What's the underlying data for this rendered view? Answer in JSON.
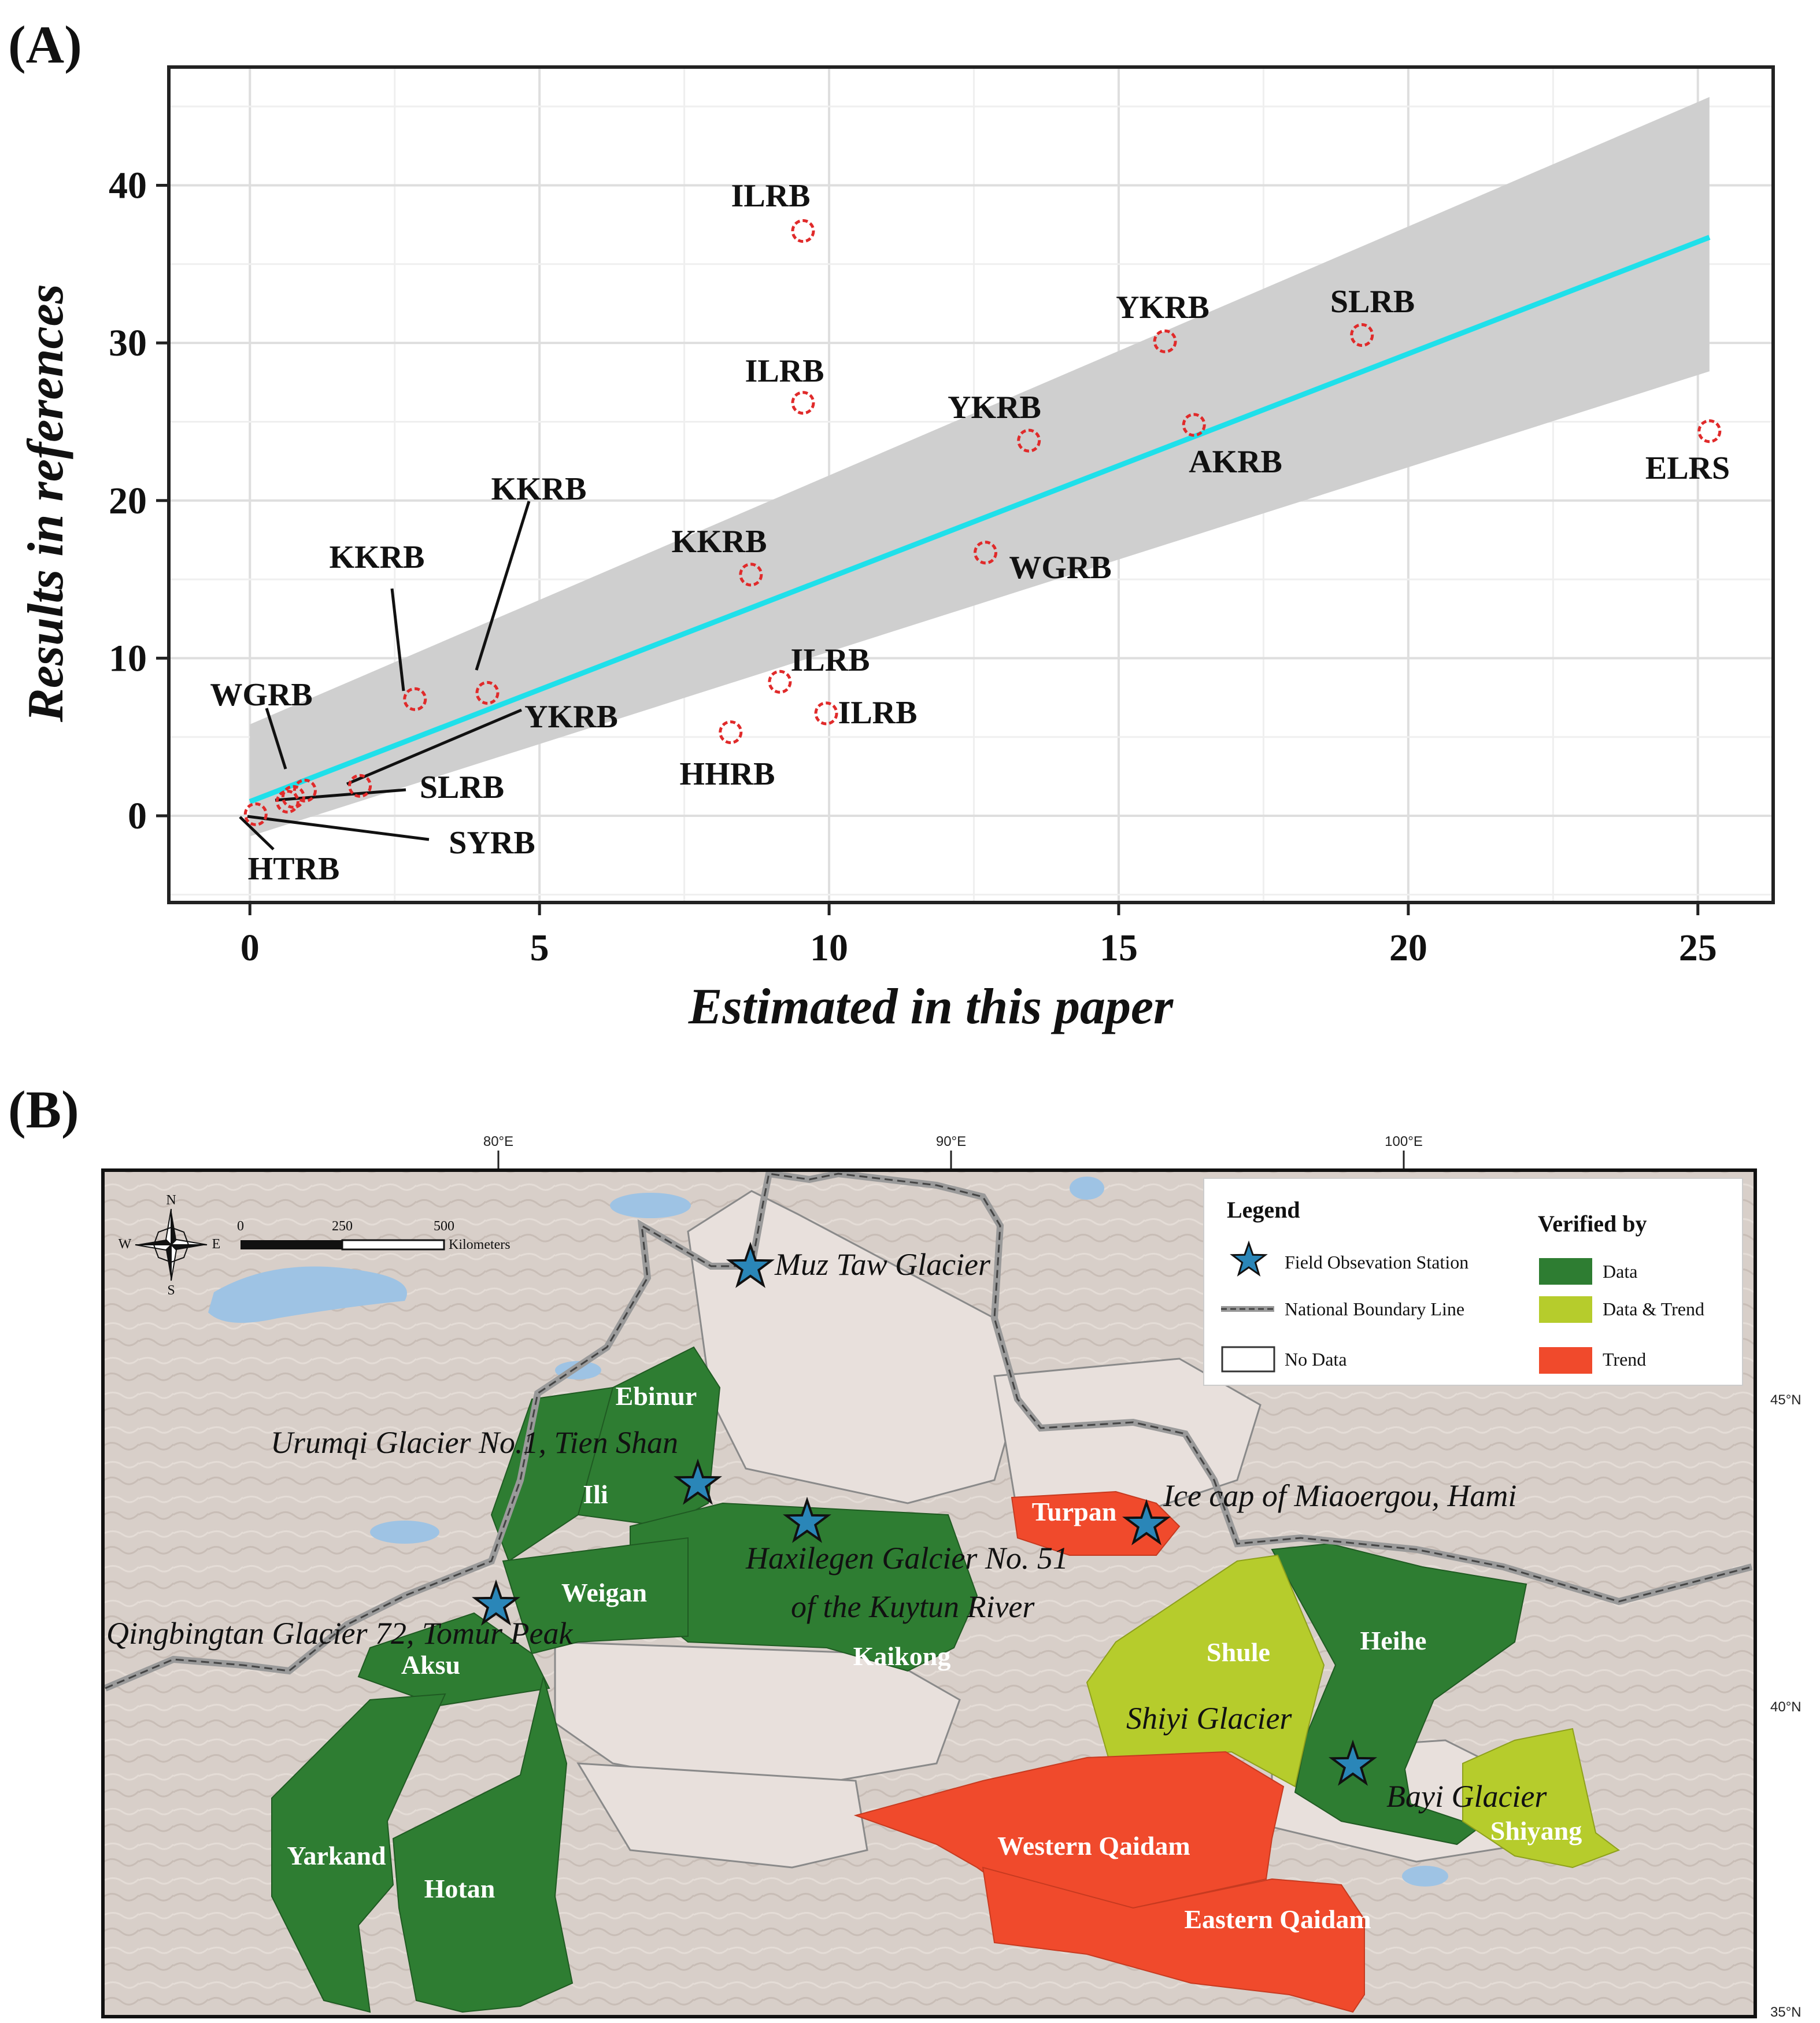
{
  "panel_a": {
    "label": "(A)"
  },
  "panel_b": {
    "label": "(B)"
  },
  "chart_data": {
    "type": "scatter",
    "xlabel": "Estimated in this paper",
    "ylabel": "Results in references",
    "xlim": [
      -1.4,
      26.3
    ],
    "ylim": [
      -5.5,
      47.5
    ],
    "xticks": [
      0,
      5,
      10,
      15,
      20,
      25
    ],
    "yticks": [
      0,
      10,
      20,
      30,
      40
    ],
    "grid": true,
    "colors": {
      "points": "#e02a2a",
      "fit_line": "#1fe0ea",
      "confidence_band": "#cfcfcf"
    },
    "points": [
      {
        "x": 0.1,
        "y": 0.1,
        "label": "HTRB"
      },
      {
        "x": 0.65,
        "y": 0.9,
        "label": "SYRB"
      },
      {
        "x": 0.95,
        "y": 1.6,
        "label": "WGRB"
      },
      {
        "x": 0.75,
        "y": 1.2,
        "label": "SLRB"
      },
      {
        "x": 1.9,
        "y": 1.9,
        "label": "YKRB"
      },
      {
        "x": 2.85,
        "y": 7.4,
        "label": "KKRB"
      },
      {
        "x": 4.1,
        "y": 7.8,
        "label": "KKRB"
      },
      {
        "x": 8.3,
        "y": 5.3,
        "label": "HHRB"
      },
      {
        "x": 9.15,
        "y": 8.5,
        "label": "ILRB"
      },
      {
        "x": 9.95,
        "y": 6.5,
        "label": "ILRB"
      },
      {
        "x": 8.65,
        "y": 15.3,
        "label": "KKRB"
      },
      {
        "x": 9.55,
        "y": 26.2,
        "label": "ILRB"
      },
      {
        "x": 9.55,
        "y": 37.1,
        "label": "ILRB"
      },
      {
        "x": 12.7,
        "y": 16.7,
        "label": "WGRB"
      },
      {
        "x": 13.45,
        "y": 23.8,
        "label": "YKRB"
      },
      {
        "x": 15.8,
        "y": 30.1,
        "label": "YKRB"
      },
      {
        "x": 16.3,
        "y": 24.8,
        "label": "AKRB"
      },
      {
        "x": 19.2,
        "y": 30.5,
        "label": "SLRB"
      },
      {
        "x": 25.2,
        "y": 24.4,
        "label": "ELRS"
      }
    ],
    "fit": {
      "x": [
        0,
        25.2
      ],
      "y": [
        0.9,
        36.7
      ]
    },
    "band": {
      "x": [
        0,
        25.2
      ],
      "lower": [
        -1.3,
        28.2
      ],
      "upper": [
        5.8,
        45.6
      ]
    }
  },
  "map": {
    "longitudes": [
      "80°E",
      "90°E",
      "100°E"
    ],
    "latitudes": [
      "45°N",
      "40°N",
      "35°N"
    ],
    "compass": {
      "n": "N",
      "s": "S",
      "e": "E",
      "w": "W"
    },
    "scale": {
      "ticks": [
        "0",
        "250",
        "500"
      ],
      "unit": "Kilometers"
    },
    "regions": {
      "ebinur": "Ebinur",
      "ili": "Ili",
      "weigan": "Weigan",
      "aksu": "Aksu",
      "kaikong": "Kaikong",
      "yarkand": "Yarkand",
      "hotan": "Hotan",
      "turpan": "Turpan",
      "shule": "Shule",
      "heihe": "Heihe",
      "shiyang": "Shiyang",
      "western_qaidam": "Western Qaidam",
      "eastern_qaidam": "Eastern Qaidam"
    },
    "stations": {
      "muz_taw": "Muz Taw Glacier",
      "urumqi": "Urumqi Glacier No.1, Tien Shan",
      "haxilegen_1": "Haxilegen Galcier No. 51",
      "haxilegen_2": "of the Kuytun River",
      "qingbingtan": "Qingbingtan Glacier 72, Tomur Peak",
      "miaoergou": "Ice cap of Miaoergou, Hami",
      "shiyi": "Shiyi Glacier",
      "bayi": "Bayi Glacier"
    },
    "legend": {
      "title": "Legend",
      "verified_by": "Verified by",
      "field_station": "Field Obsevation Station",
      "boundary": "National Boundary Line",
      "no_data": "No Data",
      "data": "Data",
      "data_trend": "Data & Trend",
      "trend": "Trend"
    },
    "colors": {
      "data": "#2e7d32",
      "data_trend": "#b6cc2c",
      "trend": "#f04a2c",
      "terrain": "#d8cfc9",
      "water": "#9ec3e4",
      "station_star": "#2a86b8"
    }
  }
}
